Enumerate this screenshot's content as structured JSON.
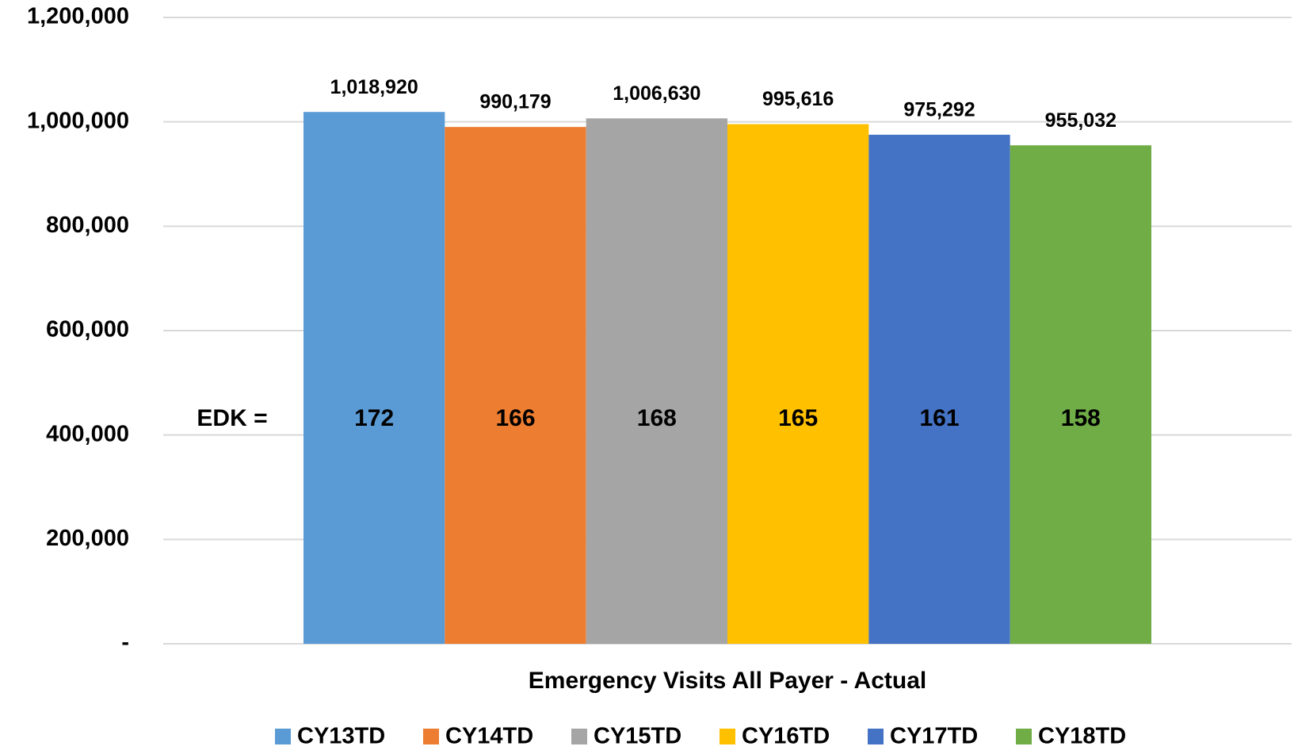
{
  "chart_data": {
    "type": "bar",
    "x_label": "Emergency Visits All Payer - Actual",
    "annotation": "EDK =",
    "ylim": [
      0,
      1200000
    ],
    "yticks": [
      {
        "value": 0,
        "label": "-"
      },
      {
        "value": 200000,
        "label": "200,000"
      },
      {
        "value": 400000,
        "label": "400,000"
      },
      {
        "value": 600000,
        "label": "600,000"
      },
      {
        "value": 800000,
        "label": "800,000"
      },
      {
        "value": 1000000,
        "label": "1,000,000"
      },
      {
        "value": 1200000,
        "label": "1,200,000"
      }
    ],
    "grid": true,
    "legend": "bottom",
    "series": [
      {
        "name": "CY13TD",
        "color": "#5b9bd5",
        "values": [
          1018920
        ],
        "value_labels": [
          "1,018,920"
        ],
        "edk": 172
      },
      {
        "name": "CY14TD",
        "color": "#ed7d31",
        "values": [
          990179
        ],
        "value_labels": [
          "990,179"
        ],
        "edk": 166
      },
      {
        "name": "CY15TD",
        "color": "#a5a5a5",
        "values": [
          1006630
        ],
        "value_labels": [
          "1,006,630"
        ],
        "edk": 168
      },
      {
        "name": "CY16TD",
        "color": "#ffc000",
        "values": [
          995616
        ],
        "value_labels": [
          "995,616"
        ],
        "edk": 165
      },
      {
        "name": "CY17TD",
        "color": "#4472c4",
        "values": [
          975292
        ],
        "value_labels": [
          "975,292"
        ],
        "edk": 161
      },
      {
        "name": "CY18TD",
        "color": "#70ad47",
        "values": [
          955032
        ],
        "value_labels": [
          "955,032"
        ],
        "edk": 158
      }
    ]
  }
}
